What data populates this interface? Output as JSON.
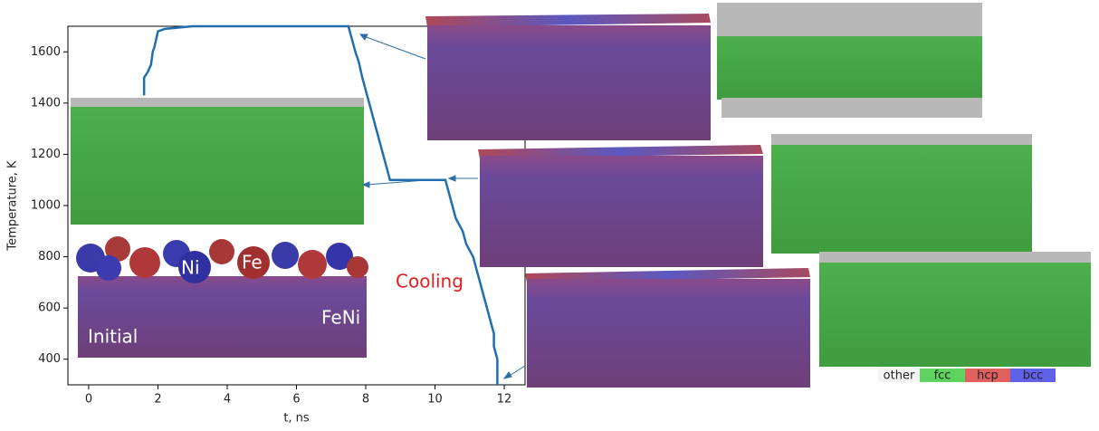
{
  "chart_data": {
    "type": "line",
    "xlabel": "t, ns",
    "ylabel": "Temperature, K",
    "xlim": [
      -0.6,
      12.6
    ],
    "ylim": [
      300,
      1700
    ],
    "xticks": [
      0,
      2,
      4,
      6,
      8,
      10,
      12
    ],
    "yticks": [
      400,
      600,
      800,
      1000,
      1200,
      1400,
      1600
    ],
    "color": "#1f6fb0",
    "x": [
      1.6,
      1.6,
      1.7,
      1.8,
      1.85,
      1.9,
      2.0,
      2.2,
      3.0,
      7.5,
      7.6,
      7.7,
      7.8,
      7.9,
      8.0,
      8.1,
      8.2,
      8.3,
      8.4,
      8.5,
      8.6,
      8.7,
      10.3,
      10.4,
      10.5,
      10.6,
      10.8,
      10.9,
      11.1,
      11.2,
      11.3,
      11.4,
      11.5,
      11.6,
      11.7,
      11.7,
      11.8,
      11.8
    ],
    "values": [
      1430,
      1500,
      1520,
      1550,
      1600,
      1620,
      1680,
      1690,
      1700,
      1700,
      1650,
      1600,
      1560,
      1500,
      1450,
      1400,
      1350,
      1300,
      1250,
      1200,
      1150,
      1100,
      1100,
      1050,
      1000,
      950,
      900,
      850,
      800,
      750,
      700,
      650,
      600,
      550,
      500,
      450,
      400,
      300
    ],
    "annotations": {
      "cooling": "Cooling",
      "ni": "Ni",
      "fe": "Fe",
      "alloy": "FeNi",
      "initial": "Initial"
    },
    "structure_legend": [
      {
        "label": "other",
        "color": "#f4f4f4"
      },
      {
        "label": "fcc",
        "color": "#5fd35f"
      },
      {
        "label": "hcp",
        "color": "#e06060"
      },
      {
        "label": "bcc",
        "color": "#6060e8"
      }
    ]
  }
}
